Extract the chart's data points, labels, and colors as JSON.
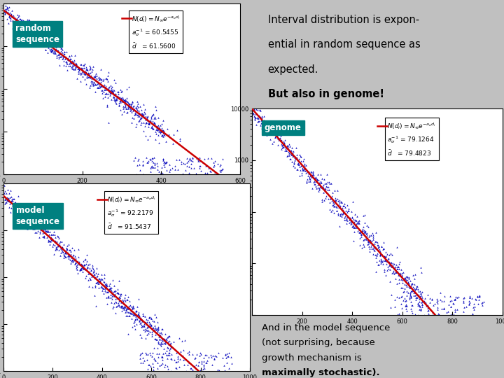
{
  "bg_color": "#c0c0c0",
  "panel_bg": "#ffffff",
  "teal_color": "#008080",
  "light_blue_box": "#b8d8f0",
  "plot1": {
    "label": "random\nsequence",
    "xmax": 600,
    "slope": -0.01625,
    "intercept": 8.85,
    "a_sigma": "60.5455",
    "d_bar": "61.5600",
    "x_ticks": [
      0,
      200,
      400,
      600
    ],
    "scatter_scale": 61.56,
    "scatter_N0": 5000
  },
  "plot2": {
    "label": "genome",
    "xmax": 1000,
    "slope": -0.01258,
    "intercept": 9.2,
    "a_sigma": "79.1264",
    "d_bar": "79.4823",
    "x_ticks": [
      200,
      400,
      600,
      800,
      1000
    ],
    "scatter_scale": 79.48,
    "scatter_N0": 8000
  },
  "plot3": {
    "label": "model\nsequence",
    "xmax": 1000,
    "slope": -0.01086,
    "intercept": 8.6,
    "a_sigma": "92.2179",
    "d_bar": "91.5437",
    "x_ticks": [
      0,
      200,
      400,
      600,
      800,
      1000
    ],
    "scatter_scale": 91.54,
    "scatter_N0": 5000
  },
  "scatter_color": "#0000bb",
  "line_color": "#cc0000",
  "text1_lines": [
    "Interval distribution is expon-",
    "ential in random sequence as",
    "expected.",
    "But also in genome!"
  ],
  "text1_bold_idx": 3,
  "text2_lines": [
    "And in the model sequence",
    "(not surprising, because",
    "growth mechanism is",
    "maximally stochastic)."
  ],
  "text2_bold_idx": 3
}
